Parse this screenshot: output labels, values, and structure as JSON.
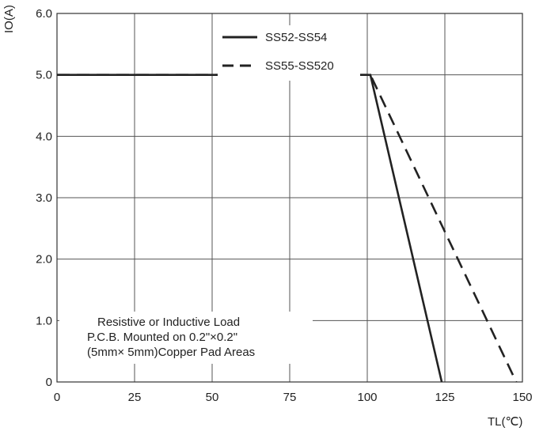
{
  "chart_data": {
    "type": "line",
    "xlabel": "TL(℃)",
    "ylabel": "IO(A)",
    "xlim": [
      0,
      150
    ],
    "ylim": [
      0,
      6
    ],
    "x_ticks": [
      "0",
      "25",
      "50",
      "75",
      "100",
      "125",
      "150"
    ],
    "x_tick_values": [
      0,
      25,
      50,
      75,
      100,
      125,
      150
    ],
    "y_ticks": [
      "0",
      "1.0",
      "2.0",
      "3.0",
      "4.0",
      "5.0",
      "6.0"
    ],
    "y_tick_values": [
      0,
      1,
      2,
      3,
      4,
      5,
      6
    ],
    "grid": true,
    "legend_position": "top-right",
    "series": [
      {
        "name": "SS52-SS54",
        "style": "solid",
        "color": "#222222",
        "x": [
          0,
          101,
          124
        ],
        "y": [
          5.0,
          5.0,
          0
        ]
      },
      {
        "name": "SS55-SS520",
        "style": "dashed",
        "color": "#222222",
        "x": [
          0,
          101,
          148
        ],
        "y": [
          5.0,
          5.0,
          0
        ]
      }
    ],
    "annotation": [
      "Resistive or Inductive Load",
      "P.C.B. Mounted on 0.2\"×0.2\"",
      "(5mm× 5mm)Copper Pad Areas"
    ]
  }
}
